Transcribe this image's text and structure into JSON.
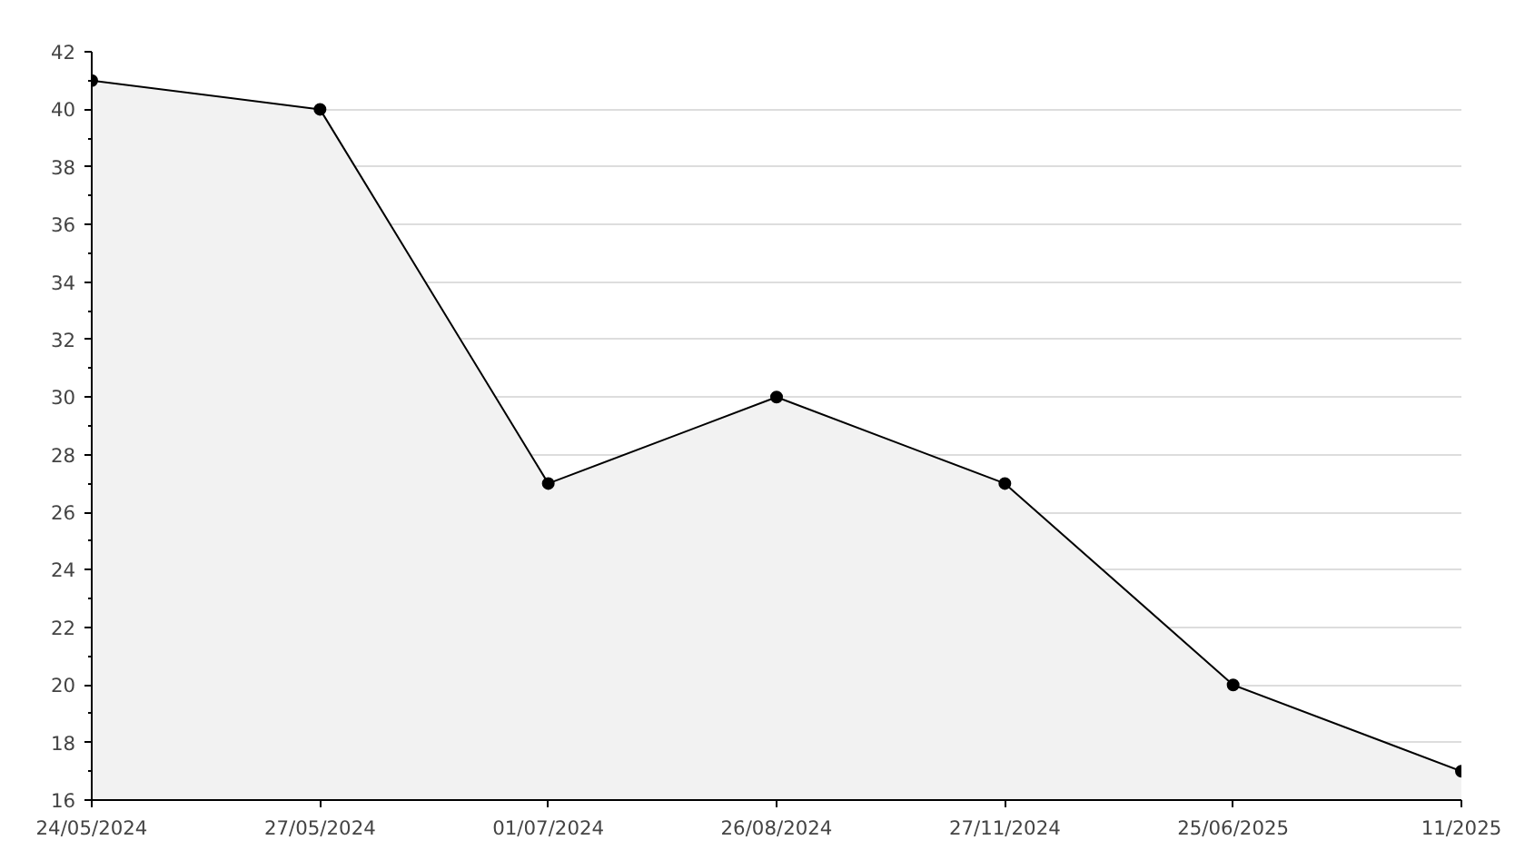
{
  "chart_data": {
    "type": "area",
    "categories": [
      "24/05/2024",
      "27/05/2024",
      "01/07/2024",
      "26/08/2024",
      "27/11/2024",
      "25/06/2025",
      "11/2025"
    ],
    "series": [
      {
        "color": "#000000",
        "values": [
          41,
          40,
          27,
          30,
          27,
          20,
          17
        ]
      }
    ],
    "ylim": [
      16,
      42
    ],
    "yticks": [
      16,
      18,
      20,
      22,
      24,
      26,
      28,
      30,
      32,
      34,
      36,
      38,
      40,
      42
    ],
    "grid": "y",
    "marker": "circle",
    "line_style": "solid"
  }
}
